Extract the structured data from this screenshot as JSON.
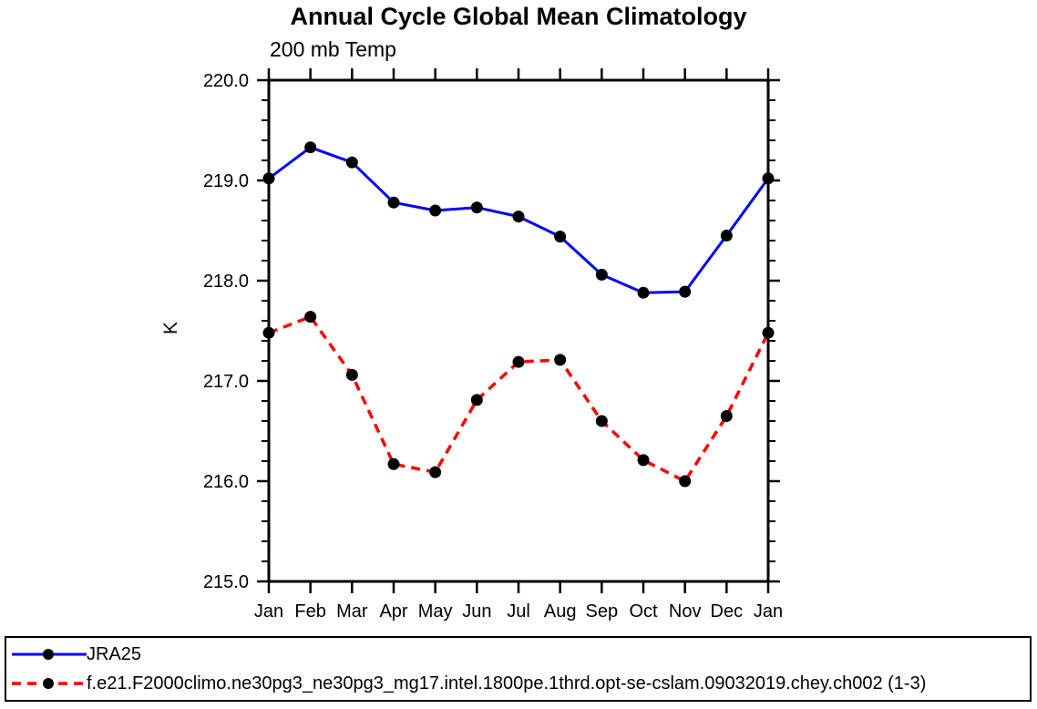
{
  "chart_data": {
    "type": "line",
    "title": "Annual Cycle Global Mean Climatology",
    "subtitle": "200 mb Temp",
    "xlabel": "",
    "ylabel": "K",
    "ylim": [
      215.0,
      220.0
    ],
    "ytick_major_step": 1.0,
    "ytick_minor_step": 0.2,
    "yticks": [
      220.0,
      219.0,
      218.0,
      217.0,
      216.0,
      215.0
    ],
    "ytick_labels": [
      "220.0",
      "219.0",
      "218.0",
      "217.0",
      "216.0",
      "215.0"
    ],
    "categories": [
      "Jan",
      "Feb",
      "Mar",
      "Apr",
      "May",
      "Jun",
      "Jul",
      "Aug",
      "Sep",
      "Oct",
      "Nov",
      "Dec",
      "Jan"
    ],
    "grid": false,
    "legend_position": "bottom",
    "series": [
      {
        "name": "JRA25",
        "color": "#0000ff",
        "line_style": "solid",
        "line_width": 3,
        "marker": "circle",
        "marker_color": "#000000",
        "values": [
          219.02,
          219.33,
          219.18,
          218.78,
          218.7,
          218.73,
          218.64,
          218.44,
          218.06,
          217.88,
          217.89,
          218.45,
          219.02
        ]
      },
      {
        "name": "f.e21.F2000climo.ne30pg3_ne30pg3_mg17.intel.1800pe.1thrd.opt-se-cslam.09032019.chey.ch002 (1-3)",
        "color": "#ff0000",
        "line_style": "dashed",
        "line_width": 3.5,
        "marker": "circle",
        "marker_color": "#000000",
        "values": [
          217.48,
          217.64,
          217.06,
          216.17,
          216.09,
          216.81,
          217.19,
          217.21,
          216.6,
          216.21,
          216.0,
          216.65,
          217.48
        ]
      }
    ],
    "axis_color": "#000000",
    "background_color": "#ffffff"
  }
}
